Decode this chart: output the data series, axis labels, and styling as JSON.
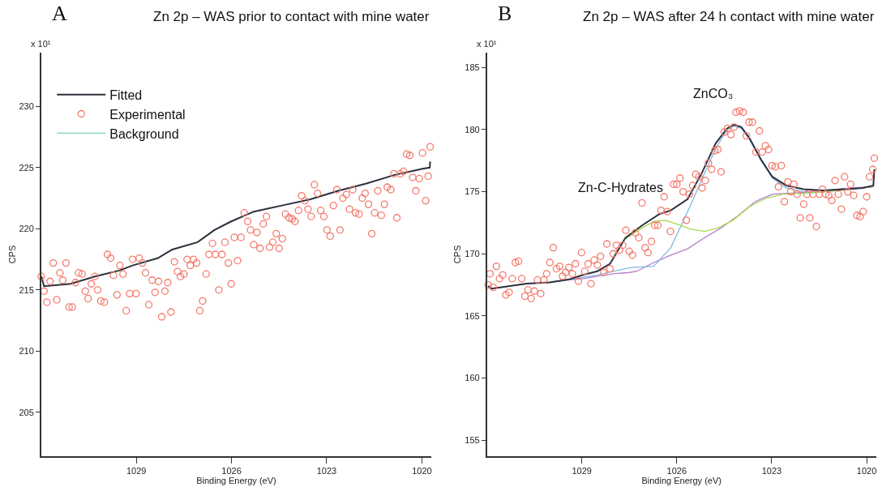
{
  "chart_data": [
    {
      "type": "line",
      "title": "Zn 2p – WAS prior to contact with mine water",
      "xlabel": "Binding Energy (eV)",
      "ylabel": "CPS",
      "annotations": [
        "A",
        "x 10¹"
      ],
      "xlim": [
        1032,
        1019.7
      ],
      "xticks": [
        1029,
        1026,
        1023,
        1020
      ],
      "ylim": [
        201.4,
        234.4
      ],
      "yticks": [
        205,
        210,
        215,
        220,
        225,
        230
      ],
      "legend": "top left",
      "series": [
        {
          "name": "Fitted",
          "color": "#2b2f3a",
          "x": [
            1031.99,
            1031.91,
            1031.07,
            1030.31,
            1029.52,
            1029.12,
            1028.32,
            1027.87,
            1027.07,
            1026.54,
            1026.01,
            1025.3,
            1024.41,
            1023.52,
            1022.64,
            1021.75,
            1020.86,
            1019.98,
            1019.75,
            1019.74
          ],
          "values": [
            216.1,
            215.3,
            215.5,
            216.1,
            216.6,
            217.0,
            217.6,
            218.3,
            218.9,
            219.9,
            220.6,
            221.4,
            221.9,
            222.4,
            223.1,
            223.7,
            224.4,
            224.9,
            225.0,
            225.5
          ]
        },
        {
          "name": "Experimental",
          "type": "scatter",
          "marker": "circle",
          "color": "#f4796b",
          "x": [
            1032.0,
            1031.91,
            1031.82,
            1031.72,
            1031.62,
            1031.51,
            1031.41,
            1031.32,
            1031.22,
            1031.12,
            1031.02,
            1030.92,
            1030.82,
            1030.71,
            1030.61,
            1030.52,
            1030.42,
            1030.31,
            1030.22,
            1030.12,
            1030.01,
            1029.91,
            1029.81,
            1029.72,
            1029.61,
            1029.52,
            1029.42,
            1029.32,
            1029.21,
            1029.12,
            1029.01,
            1028.91,
            1028.81,
            1028.71,
            1028.61,
            1028.5,
            1028.41,
            1028.3,
            1028.2,
            1028.1,
            1028.01,
            1027.91,
            1027.8,
            1027.7,
            1027.61,
            1027.5,
            1027.4,
            1027.3,
            1027.2,
            1027.1,
            1027.0,
            1026.91,
            1026.8,
            1026.71,
            1026.6,
            1026.51,
            1026.4,
            1026.3,
            1026.21,
            1026.1,
            1026.01,
            1025.91,
            1025.81,
            1025.7,
            1025.6,
            1025.49,
            1025.4,
            1025.3,
            1025.2,
            1025.1,
            1025.0,
            1024.9,
            1024.8,
            1024.7,
            1024.59,
            1024.5,
            1024.4,
            1024.3,
            1024.19,
            1024.09,
            1024.0,
            1023.89,
            1023.79,
            1023.69,
            1023.59,
            1023.49,
            1023.39,
            1023.29,
            1023.19,
            1023.09,
            1022.99,
            1022.89,
            1022.79,
            1022.68,
            1022.58,
            1022.49,
            1022.38,
            1022.28,
            1022.18,
            1022.09,
            1021.98,
            1021.88,
            1021.79,
            1021.68,
            1021.58,
            1021.49,
            1021.39,
            1021.28,
            1021.18,
            1021.09,
            1020.98,
            1020.88,
            1020.79,
            1020.68,
            1020.58,
            1020.48,
            1020.38,
            1020.29,
            1020.19,
            1020.08,
            1019.98,
            1019.88,
            1019.8,
            1019.74
          ],
          "values": [
            216.1,
            214.9,
            214.0,
            215.7,
            217.2,
            214.2,
            216.4,
            215.8,
            217.2,
            213.6,
            213.6,
            215.6,
            216.4,
            216.3,
            214.9,
            214.3,
            215.5,
            216.1,
            215.0,
            214.1,
            214.0,
            217.9,
            217.6,
            216.2,
            214.6,
            217.0,
            216.3,
            213.3,
            214.7,
            217.5,
            214.7,
            217.6,
            217.2,
            216.4,
            213.8,
            215.8,
            214.8,
            215.7,
            212.8,
            214.9,
            215.6,
            213.2,
            217.3,
            216.5,
            216.1,
            216.3,
            217.5,
            217.0,
            217.5,
            217.2,
            213.3,
            214.1,
            216.3,
            217.9,
            218.8,
            217.9,
            215.0,
            217.9,
            218.9,
            217.2,
            215.5,
            219.3,
            217.4,
            219.3,
            221.3,
            220.6,
            219.9,
            218.7,
            219.7,
            218.4,
            220.4,
            221.0,
            218.5,
            218.9,
            219.6,
            218.4,
            219.2,
            221.2,
            220.9,
            220.8,
            220.6,
            221.5,
            222.7,
            222.3,
            221.6,
            221.0,
            223.6,
            222.9,
            221.5,
            221.0,
            219.9,
            219.4,
            221.9,
            223.2,
            219.9,
            222.5,
            222.8,
            221.6,
            223.2,
            221.3,
            221.2,
            222.5,
            222.9,
            222.0,
            219.6,
            221.3,
            223.1,
            221.1,
            222.0,
            223.4,
            223.2,
            224.5,
            220.9,
            224.5,
            224.7,
            226.1,
            226.0,
            224.2,
            223.1,
            224.1,
            226.2,
            222.3,
            224.3,
            226.7
          ]
        },
        {
          "name": "Background",
          "color": "#7fd1c0",
          "values": [
            null
          ]
        }
      ]
    },
    {
      "type": "line",
      "title": "Zn 2p – WAS after 24 h contact with mine water",
      "xlabel": "Binding Energy (eV)",
      "ylabel": "CPS",
      "annotations": [
        "B",
        "x 10¹"
      ],
      "xlim": [
        1032,
        1019.7
      ],
      "xticks": [
        1029,
        1026,
        1023,
        1020
      ],
      "ylim": [
        153.7,
        186.2
      ],
      "yticks": [
        155,
        160,
        165,
        170,
        175,
        180,
        185
      ],
      "series": [
        {
          "color": "#b57ccc",
          "x": [
            1031.96,
            1031.85,
            1030.74,
            1030.02,
            1029.4,
            1028.96,
            1028.51,
            1028.0,
            1027.5,
            1027.26,
            1026.73,
            1026.19,
            1025.66,
            1025.12,
            1024.59,
            1024.05,
            1023.52,
            1022.98,
            1022.27,
            1021.38,
            1020.49,
            1019.79
          ],
          "values": [
            167.4,
            167.2,
            167.6,
            167.7,
            167.9,
            168.0,
            168.2,
            168.4,
            168.5,
            168.6,
            169.3,
            169.9,
            170.4,
            171.3,
            172.1,
            173.1,
            174.2,
            174.8,
            174.9,
            175.1,
            175.3,
            175.4
          ]
        },
        {
          "name": "ZnCO₃",
          "color": "#7fb8df",
          "x": [
            1029.4,
            1028.96,
            1028.51,
            1028.0,
            1027.44,
            1026.73,
            1026.19,
            1025.84,
            1025.48,
            1025.12,
            1024.77,
            1024.41,
            1024.19,
            1023.96,
            1023.7,
            1023.34,
            1022.98,
            1022.54,
            1021.82,
            1020.93,
            1019.79
          ],
          "values": [
            167.9,
            168.1,
            168.3,
            168.6,
            168.9,
            169.0,
            170.5,
            172.4,
            174.4,
            176.5,
            178.5,
            180.0,
            180.3,
            180.1,
            179.2,
            177.5,
            176.1,
            175.3,
            174.9,
            175.1,
            175.4
          ]
        },
        {
          "name": "Zn-C-Hydrates",
          "color": "#a6d84a",
          "x": [
            1027.62,
            1027.09,
            1026.73,
            1026.37,
            1026.01,
            1025.57,
            1025.12,
            1024.68,
            1024.23,
            1023.7,
            1023.16,
            1022.63,
            1021.82,
            1020.93,
            1019.79
          ],
          "values": [
            171.2,
            172.1,
            172.6,
            172.7,
            172.4,
            172.0,
            171.8,
            172.1,
            172.7,
            173.8,
            174.5,
            174.8,
            174.9,
            175.1,
            175.4
          ]
        },
        {
          "color": "#2d3240",
          "x": [
            1031.96,
            1031.85,
            1030.74,
            1030.02,
            1029.4,
            1028.96,
            1028.51,
            1028.11,
            1027.62,
            1027.09,
            1026.55,
            1026.19,
            1025.66,
            1025.21,
            1024.77,
            1024.41,
            1024.19,
            1023.96,
            1023.7,
            1023.34,
            1022.98,
            1022.54,
            1022.0,
            1021.38,
            1020.67,
            1020.13,
            1019.79,
            1019.76
          ],
          "values": [
            167.4,
            167.2,
            167.6,
            167.7,
            167.95,
            168.3,
            168.6,
            169.2,
            171.3,
            172.3,
            173.2,
            173.5,
            174.4,
            176.5,
            178.9,
            180.1,
            180.4,
            180.2,
            179.3,
            177.6,
            176.2,
            175.5,
            175.2,
            175.1,
            175.2,
            175.3,
            175.5,
            176.8
          ]
        },
        {
          "type": "scatter",
          "marker": "circle",
          "color": "#f4796b",
          "x": [
            1031.96,
            1031.9,
            1031.8,
            1031.7,
            1031.6,
            1031.5,
            1031.4,
            1031.3,
            1031.2,
            1031.1,
            1031.0,
            1030.9,
            1030.8,
            1030.7,
            1030.6,
            1030.5,
            1030.4,
            1030.3,
            1030.2,
            1030.11,
            1030.01,
            1029.9,
            1029.8,
            1029.7,
            1029.61,
            1029.51,
            1029.41,
            1029.3,
            1029.2,
            1029.11,
            1029.01,
            1028.91,
            1028.8,
            1028.71,
            1028.61,
            1028.51,
            1028.41,
            1028.31,
            1028.21,
            1028.11,
            1028.01,
            1027.91,
            1027.81,
            1027.71,
            1027.61,
            1027.5,
            1027.4,
            1027.31,
            1027.2,
            1027.1,
            1027.0,
            1026.91,
            1026.8,
            1026.7,
            1026.6,
            1026.5,
            1026.4,
            1026.3,
            1026.2,
            1026.1,
            1026.0,
            1025.9,
            1025.8,
            1025.7,
            1025.6,
            1025.5,
            1025.4,
            1025.3,
            1025.2,
            1025.1,
            1025.0,
            1024.9,
            1024.8,
            1024.7,
            1024.6,
            1024.5,
            1024.4,
            1024.29,
            1024.19,
            1024.13,
            1024.02,
            1023.9,
            1023.8,
            1023.72,
            1023.61,
            1023.5,
            1023.39,
            1023.3,
            1023.2,
            1023.1,
            1022.99,
            1022.89,
            1022.79,
            1022.7,
            1022.6,
            1022.49,
            1022.4,
            1022.3,
            1022.2,
            1022.1,
            1021.99,
            1021.89,
            1021.8,
            1021.7,
            1021.59,
            1021.5,
            1021.4,
            1021.3,
            1021.2,
            1021.1,
            1021.0,
            1020.9,
            1020.8,
            1020.7,
            1020.6,
            1020.51,
            1020.41,
            1020.31,
            1020.21,
            1020.11,
            1020.0,
            1019.91,
            1019.81,
            1019.76
          ],
          "values": [
            167.5,
            168.4,
            167.3,
            169.0,
            168.0,
            168.3,
            166.7,
            166.9,
            168.0,
            169.3,
            169.4,
            168.0,
            166.6,
            167.1,
            166.4,
            167.0,
            167.9,
            166.8,
            167.9,
            168.4,
            169.3,
            170.5,
            168.8,
            169.0,
            168.2,
            168.5,
            168.9,
            168.4,
            169.2,
            167.8,
            170.1,
            168.6,
            169.2,
            167.6,
            169.5,
            169.1,
            169.8,
            168.5,
            170.8,
            168.8,
            170.0,
            170.7,
            170.3,
            170.7,
            171.9,
            170.2,
            169.9,
            171.7,
            171.3,
            174.1,
            170.5,
            170.1,
            171.0,
            172.3,
            172.3,
            173.5,
            174.6,
            173.4,
            171.8,
            175.6,
            175.6,
            176.1,
            175.0,
            172.7,
            174.8,
            175.5,
            176.4,
            176.2,
            175.3,
            175.9,
            177.3,
            176.8,
            178.3,
            178.4,
            176.6,
            179.8,
            180.1,
            179.6,
            180.2,
            181.4,
            181.5,
            181.4,
            179.5,
            180.6,
            180.6,
            178.2,
            179.9,
            178.2,
            178.7,
            178.4,
            177.1,
            177.0,
            175.4,
            177.1,
            174.2,
            175.8,
            175.0,
            175.6,
            174.8,
            172.9,
            174.0,
            174.8,
            172.9,
            174.8,
            172.2,
            174.8,
            175.2,
            174.8,
            174.7,
            174.3,
            175.9,
            174.8,
            173.6,
            176.2,
            175.0,
            175.6,
            174.7,
            173.1,
            173.0,
            173.4,
            174.6,
            176.2,
            176.8,
            177.7
          ]
        }
      ]
    }
  ]
}
